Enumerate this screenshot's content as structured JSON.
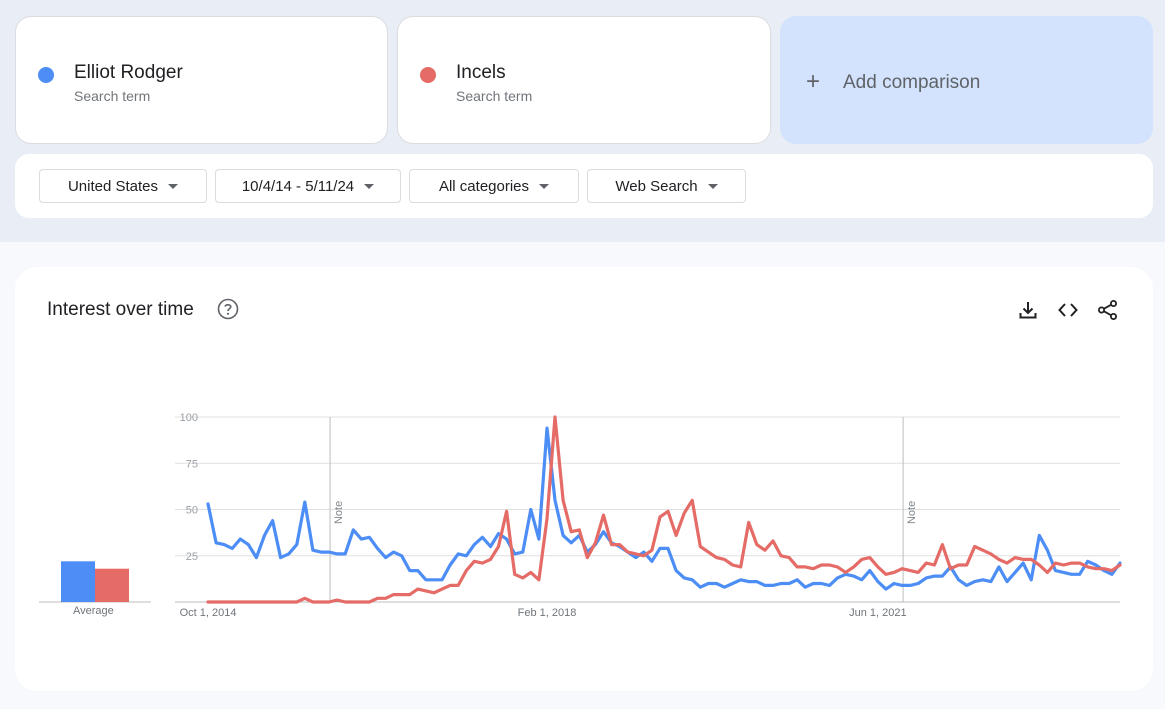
{
  "terms": [
    {
      "name": "Elliot Rodger",
      "sub": "Search term",
      "color": "#4c8df6"
    },
    {
      "name": "Incels",
      "sub": "Search term",
      "color": "#e46b66"
    }
  ],
  "add_comparison": {
    "plus": "+",
    "label": "Add comparison"
  },
  "filters": {
    "region": "United States",
    "date_range": "10/4/14 - 5/11/24",
    "category": "All categories",
    "search_type": "Web Search"
  },
  "panel": {
    "title": "Interest over time",
    "icons": [
      "help-icon",
      "download-icon",
      "embed-icon",
      "share-icon"
    ]
  },
  "chart_data": {
    "type": "line",
    "ylim": [
      0,
      100
    ],
    "yticks": [
      25,
      50,
      75,
      100
    ],
    "grid": true,
    "x_ticks": [
      {
        "label": "Oct 1, 2014",
        "index": 0
      },
      {
        "label": "Feb 1, 2018",
        "index": 42
      },
      {
        "label": "Jun 1, 2021",
        "index": 83
      }
    ],
    "notes": [
      {
        "label": "Note",
        "index": 15
      },
      {
        "label": "Note",
        "index": 86
      }
    ],
    "x_start": "Oct 1, 2014",
    "x_end": "May 11, 2024",
    "series": [
      {
        "name": "Elliot Rodger",
        "color": "#4c8df6",
        "average": 22,
        "values": [
          53,
          32,
          31,
          29,
          34,
          31,
          24,
          36,
          44,
          24,
          26,
          31,
          54,
          28,
          27,
          27,
          26,
          26,
          39,
          34,
          35,
          29,
          24,
          27,
          25,
          17,
          17,
          12,
          12,
          12,
          20,
          26,
          25,
          31,
          35,
          30,
          37,
          34,
          26,
          27,
          50,
          34,
          94,
          55,
          36,
          32,
          36,
          27,
          31,
          38,
          32,
          30,
          27,
          24,
          27,
          22,
          29,
          29,
          17,
          13,
          12,
          8,
          10,
          10,
          8,
          10,
          12,
          11,
          11,
          9,
          9,
          10,
          10,
          12,
          8,
          10,
          10,
          9,
          13,
          15,
          14,
          12,
          17,
          11,
          7,
          10,
          9,
          9,
          10,
          13,
          14,
          14,
          19,
          12,
          9,
          11,
          12,
          11,
          19,
          11,
          16,
          21,
          12,
          36,
          28,
          17,
          16,
          15,
          15,
          22,
          20,
          17,
          15,
          21
        ]
      },
      {
        "name": "Incels",
        "color": "#e46b66",
        "average": 18,
        "values": [
          0,
          0,
          0,
          0,
          0,
          0,
          0,
          0,
          0,
          0,
          0,
          0,
          2,
          0,
          0,
          0,
          1,
          0,
          0,
          0,
          0,
          2,
          2,
          4,
          4,
          4,
          7,
          6,
          5,
          7,
          9,
          9,
          17,
          22,
          21,
          23,
          30,
          49,
          15,
          13,
          16,
          12,
          45,
          100,
          55,
          38,
          39,
          24,
          32,
          47,
          31,
          31,
          27,
          26,
          25,
          28,
          46,
          49,
          36,
          48,
          55,
          30,
          27,
          24,
          23,
          20,
          19,
          43,
          31,
          28,
          33,
          25,
          24,
          19,
          19,
          18,
          20,
          20,
          19,
          16,
          19,
          23,
          24,
          19,
          15,
          16,
          18,
          17,
          16,
          21,
          20,
          31,
          18,
          20,
          20,
          30,
          28,
          26,
          23,
          21,
          24,
          23,
          23,
          20,
          16,
          21,
          20,
          21,
          21,
          19,
          18,
          18,
          17,
          20
        ]
      }
    ]
  }
}
